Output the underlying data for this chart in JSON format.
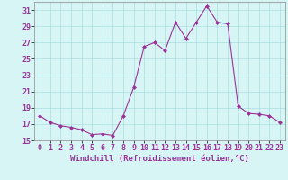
{
  "hours": [
    0,
    1,
    2,
    3,
    4,
    5,
    6,
    7,
    8,
    9,
    10,
    11,
    12,
    13,
    14,
    15,
    16,
    17,
    18,
    19,
    20,
    21,
    22,
    23
  ],
  "values": [
    18.0,
    17.2,
    16.8,
    16.6,
    16.3,
    15.7,
    15.8,
    15.6,
    18.0,
    21.5,
    26.5,
    27.0,
    26.0,
    29.5,
    27.5,
    29.5,
    31.5,
    29.5,
    29.3,
    19.2,
    18.3,
    18.2,
    18.0,
    17.2
  ],
  "line_color": "#993399",
  "marker": "D",
  "marker_size": 2.0,
  "bg_color": "#d8f5f5",
  "grid_color": "#aadddd",
  "xlabel": "Windchill (Refroidissement éolien,°C)",
  "ylim": [
    15,
    32
  ],
  "yticks": [
    15,
    17,
    19,
    21,
    23,
    25,
    27,
    29,
    31
  ],
  "xlim": [
    -0.5,
    23.5
  ],
  "xticks": [
    0,
    1,
    2,
    3,
    4,
    5,
    6,
    7,
    8,
    9,
    10,
    11,
    12,
    13,
    14,
    15,
    16,
    17,
    18,
    19,
    20,
    21,
    22,
    23
  ],
  "tick_fontsize": 6.0,
  "xlabel_fontsize": 6.5,
  "linewidth": 0.8
}
